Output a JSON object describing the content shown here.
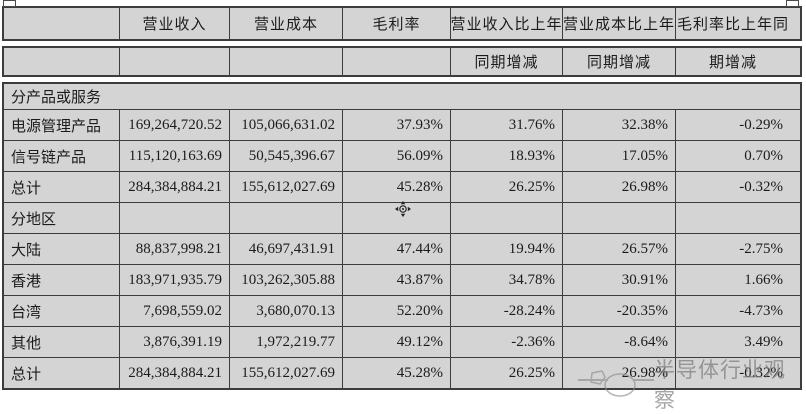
{
  "header": {
    "row1": [
      "",
      "营业收入",
      "营业成本",
      "毛利率",
      "营业收入比上年",
      "营业成本比上年",
      "毛利率比上年同"
    ],
    "row2": [
      "",
      "",
      "",
      "",
      "同期增减",
      "同期增减",
      "期增减"
    ]
  },
  "rows": [
    {
      "type": "section",
      "label": "分产品或服务",
      "values": []
    },
    {
      "type": "data",
      "label": "电源管理产品",
      "values": [
        "169,264,720.52",
        "105,066,631.02",
        "37.93%",
        "31.76%",
        "32.38%",
        "-0.29%"
      ]
    },
    {
      "type": "data",
      "label": "信号链产品",
      "values": [
        "115,120,163.69",
        "50,545,396.67",
        "56.09%",
        "18.93%",
        "17.05%",
        "0.70%"
      ]
    },
    {
      "type": "data",
      "label": "总计",
      "values": [
        "284,384,884.21",
        "155,612,027.69",
        "45.28%",
        "26.25%",
        "26.98%",
        "-0.32%"
      ]
    },
    {
      "type": "subheader",
      "label": "分地区",
      "values": [
        "",
        "",
        "",
        "",
        "",
        ""
      ]
    },
    {
      "type": "data",
      "label": "大陆",
      "values": [
        "88,837,998.21",
        "46,697,431.91",
        "47.44%",
        "19.94%",
        "26.57%",
        "-2.75%"
      ]
    },
    {
      "type": "data",
      "label": "香港",
      "values": [
        "183,971,935.79",
        "103,262,305.88",
        "43.87%",
        "34.78%",
        "30.91%",
        "1.66%"
      ]
    },
    {
      "type": "data",
      "label": "台湾",
      "values": [
        "7,698,559.02",
        "3,680,070.13",
        "52.20%",
        "-28.24%",
        "-20.35%",
        "-4.73%"
      ]
    },
    {
      "type": "data",
      "label": "其他",
      "values": [
        "3,876,391.19",
        "1,972,219.77",
        "49.12%",
        "-2.36%",
        "-8.64%",
        "3.49%"
      ]
    },
    {
      "type": "data",
      "label": "总计",
      "values": [
        "284,384,884.21",
        "155,612,027.69",
        "45.28%",
        "26.25%",
        "26.98%",
        "-0.32%"
      ]
    }
  ],
  "watermark": {
    "text": "半导体行业观察"
  },
  "colors": {
    "cell_bg": "#d4d4d4",
    "border": "#3c3c3c",
    "watermark_gray": "#6f6f6f"
  }
}
